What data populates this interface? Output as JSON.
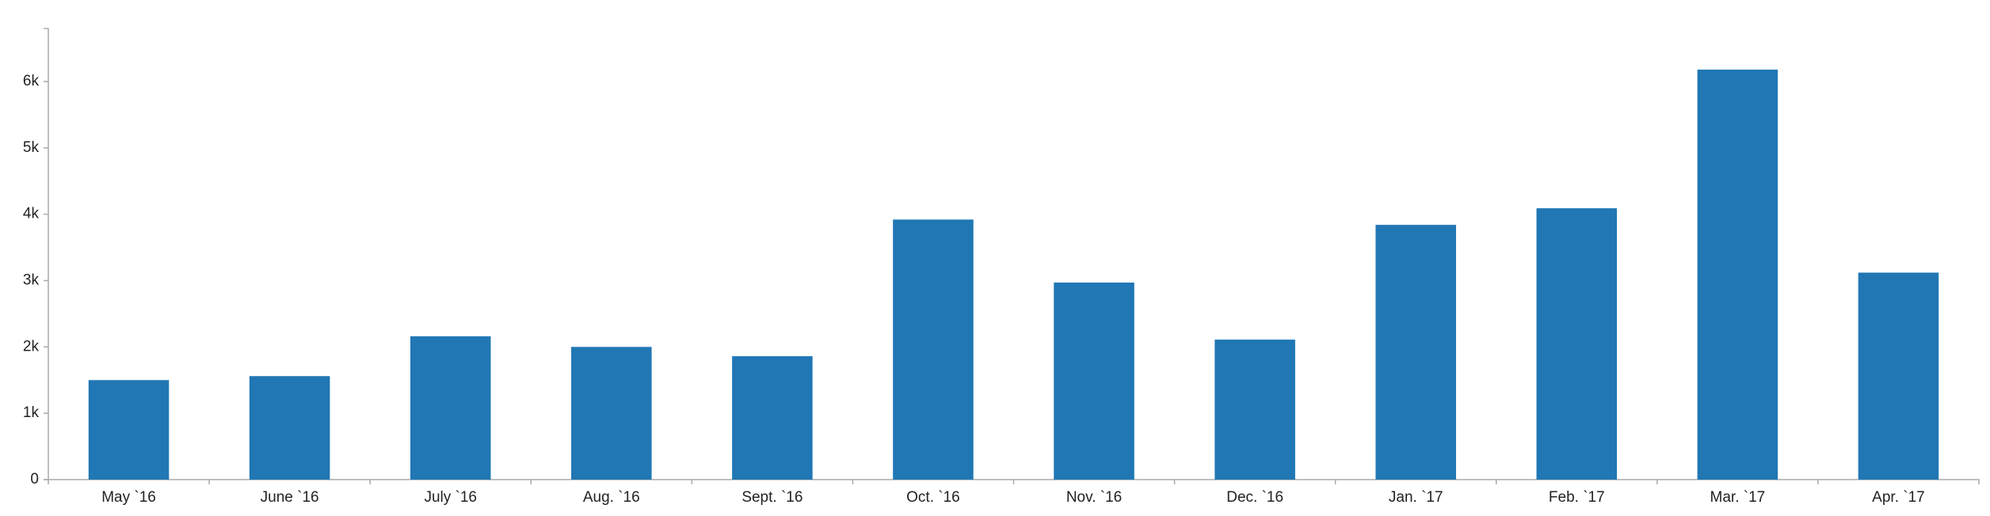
{
  "chart_data": {
    "type": "bar",
    "categories": [
      "May `16",
      "June `16",
      "July `16",
      "Aug. `16",
      "Sept. `16",
      "Oct. `16",
      "Nov. `16",
      "Dec. `16",
      "Jan. `17",
      "Feb. `17",
      "Mar. `17",
      "Apr. `17"
    ],
    "values": [
      1500,
      1560,
      2160,
      2000,
      1860,
      3920,
      2970,
      2110,
      3840,
      4090,
      6180,
      3120
    ],
    "title": "",
    "xlabel": "",
    "ylabel": "",
    "ylim": [
      0,
      6800
    ],
    "yticks": [
      0,
      1000,
      2000,
      3000,
      4000,
      5000,
      6000
    ],
    "ytick_labels": [
      "0",
      "1k",
      "2k",
      "3k",
      "4k",
      "5k",
      "6k"
    ],
    "grid": false,
    "legend": "none",
    "bar_color": "#2077b4"
  }
}
